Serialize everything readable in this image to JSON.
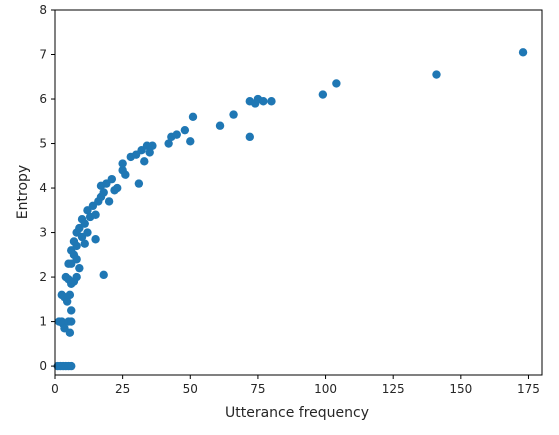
{
  "chart_data": {
    "type": "scatter",
    "xlabel": "Utterance frequency",
    "ylabel": "Entropy",
    "xlim": [
      0,
      180
    ],
    "ylim": [
      -0.2,
      8
    ],
    "xticks": [
      0,
      25,
      50,
      75,
      100,
      125,
      150,
      175
    ],
    "yticks": [
      0,
      1,
      2,
      3,
      4,
      5,
      6,
      7,
      8
    ],
    "grid": false,
    "marker_color": "#1f77b4",
    "points": [
      {
        "x": 1,
        "y": 0
      },
      {
        "x": 2,
        "y": 0
      },
      {
        "x": 3,
        "y": 0
      },
      {
        "x": 4,
        "y": 0
      },
      {
        "x": 5,
        "y": 0
      },
      {
        "x": 6,
        "y": 0
      },
      {
        "x": 1.5,
        "y": 1
      },
      {
        "x": 2.5,
        "y": 1
      },
      {
        "x": 3,
        "y": 0.95
      },
      {
        "x": 3.5,
        "y": 0.85
      },
      {
        "x": 5,
        "y": 1
      },
      {
        "x": 5.5,
        "y": 0.75
      },
      {
        "x": 6,
        "y": 1
      },
      {
        "x": 2.5,
        "y": 1.6
      },
      {
        "x": 3.5,
        "y": 1.55
      },
      {
        "x": 4.5,
        "y": 1.45
      },
      {
        "x": 5.5,
        "y": 1.6
      },
      {
        "x": 6,
        "y": 1.25
      },
      {
        "x": 4,
        "y": 2
      },
      {
        "x": 5,
        "y": 1.95
      },
      {
        "x": 6,
        "y": 1.85
      },
      {
        "x": 7,
        "y": 1.9
      },
      {
        "x": 8,
        "y": 2
      },
      {
        "x": 5,
        "y": 2.3
      },
      {
        "x": 6,
        "y": 2.3
      },
      {
        "x": 6,
        "y": 2.6
      },
      {
        "x": 7,
        "y": 2.5
      },
      {
        "x": 7,
        "y": 2.8
      },
      {
        "x": 8,
        "y": 2.4
      },
      {
        "x": 8,
        "y": 2.7
      },
      {
        "x": 9,
        "y": 2.2
      },
      {
        "x": 8,
        "y": 3
      },
      {
        "x": 9,
        "y": 3.1
      },
      {
        "x": 10,
        "y": 2.9
      },
      {
        "x": 10,
        "y": 3.3
      },
      {
        "x": 11,
        "y": 2.75
      },
      {
        "x": 11,
        "y": 3.2
      },
      {
        "x": 12,
        "y": 3
      },
      {
        "x": 12,
        "y": 3.5
      },
      {
        "x": 13,
        "y": 3.35
      },
      {
        "x": 14,
        "y": 3.6
      },
      {
        "x": 15,
        "y": 3.4
      },
      {
        "x": 15,
        "y": 2.85
      },
      {
        "x": 16,
        "y": 3.7
      },
      {
        "x": 17,
        "y": 3.8
      },
      {
        "x": 17,
        "y": 4.05
      },
      {
        "x": 18,
        "y": 3.9
      },
      {
        "x": 19,
        "y": 4.1
      },
      {
        "x": 20,
        "y": 3.7
      },
      {
        "x": 21,
        "y": 4.2
      },
      {
        "x": 22,
        "y": 3.95
      },
      {
        "x": 23,
        "y": 4
      },
      {
        "x": 25,
        "y": 4.4
      },
      {
        "x": 25,
        "y": 4.55
      },
      {
        "x": 26,
        "y": 4.3
      },
      {
        "x": 28,
        "y": 4.7
      },
      {
        "x": 30,
        "y": 4.75
      },
      {
        "x": 31,
        "y": 4.1
      },
      {
        "x": 32,
        "y": 4.85
      },
      {
        "x": 33,
        "y": 4.6
      },
      {
        "x": 34,
        "y": 4.95
      },
      {
        "x": 35,
        "y": 4.8
      },
      {
        "x": 36,
        "y": 4.95
      },
      {
        "x": 42,
        "y": 5
      },
      {
        "x": 43,
        "y": 5.15
      },
      {
        "x": 45,
        "y": 5.2
      },
      {
        "x": 48,
        "y": 5.3
      },
      {
        "x": 50,
        "y": 5.05
      },
      {
        "x": 51,
        "y": 5.6
      },
      {
        "x": 61,
        "y": 5.4
      },
      {
        "x": 66,
        "y": 5.65
      },
      {
        "x": 72,
        "y": 5.95
      },
      {
        "x": 72,
        "y": 5.15
      },
      {
        "x": 74,
        "y": 5.9
      },
      {
        "x": 75,
        "y": 6
      },
      {
        "x": 77,
        "y": 5.95
      },
      {
        "x": 80,
        "y": 5.95
      },
      {
        "x": 99,
        "y": 6.1
      },
      {
        "x": 104,
        "y": 6.35
      },
      {
        "x": 141,
        "y": 6.55
      },
      {
        "x": 173,
        "y": 7.05
      },
      {
        "x": 18,
        "y": 2.05
      }
    ]
  }
}
